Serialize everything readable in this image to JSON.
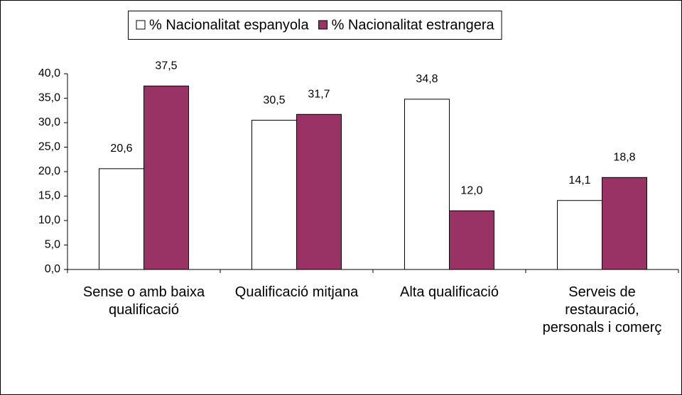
{
  "chart_data": {
    "type": "bar",
    "categories": [
      "Sense o amb baixa qualificació",
      "Qualificació mitjana",
      "Alta qualificació",
      "Serveis de restauració, personals i comerç"
    ],
    "series": [
      {
        "name": "% Nacionalitat espanyola",
        "color": "#ffffff",
        "values": [
          20.6,
          30.5,
          34.8,
          14.1
        ],
        "value_labels": [
          "20,6",
          "30,5",
          "34,8",
          "14,1"
        ]
      },
      {
        "name": "% Nacionalitat estrangera",
        "color": "#993366",
        "values": [
          37.5,
          31.7,
          12.0,
          18.8
        ],
        "value_labels": [
          "37,5",
          "31,7",
          "12,0",
          "18,8"
        ]
      }
    ],
    "ylim": [
      0,
      40
    ],
    "yticks": [
      {
        "value": 0,
        "label": "0,0"
      },
      {
        "value": 5,
        "label": "5,0"
      },
      {
        "value": 10,
        "label": "10,0"
      },
      {
        "value": 15,
        "label": "15,0"
      },
      {
        "value": 20,
        "label": "20,0"
      },
      {
        "value": 25,
        "label": "25,0"
      },
      {
        "value": 30,
        "label": "30,0"
      },
      {
        "value": 35,
        "label": "35,0"
      },
      {
        "value": 40,
        "label": "40,0"
      }
    ],
    "legend": "top",
    "grid": false
  }
}
